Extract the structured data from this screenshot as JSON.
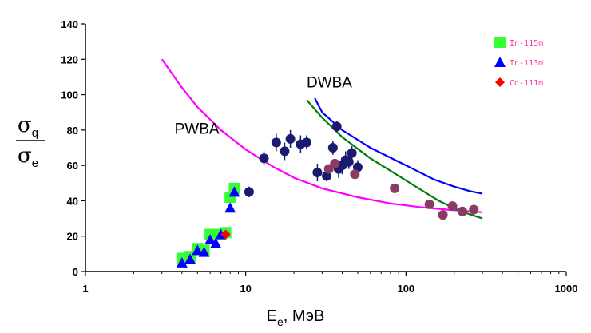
{
  "chart_data": {
    "type": "scatter",
    "title": "",
    "xlabel": "E",
    "xlabel_sub": "e",
    "xlabel_unit": ", МэВ",
    "ylabel_num": "σ",
    "ylabel_num_sub": "q",
    "ylabel_den": "σ",
    "ylabel_den_sub": "e",
    "xscale": "log",
    "xlim": [
      1,
      1000
    ],
    "ylim": [
      0,
      140
    ],
    "x_ticks": [
      {
        "value": 1,
        "label": "1"
      },
      {
        "value": 10,
        "label": "10"
      },
      {
        "value": 100,
        "label": "100"
      },
      {
        "value": 1000,
        "label": "1000"
      }
    ],
    "y_ticks": [
      {
        "value": 0,
        "label": "0"
      },
      {
        "value": 20,
        "label": "20"
      },
      {
        "value": 40,
        "label": "40"
      },
      {
        "value": 60,
        "label": "60"
      },
      {
        "value": 80,
        "label": "80"
      },
      {
        "value": 100,
        "label": "100"
      },
      {
        "value": 120,
        "label": "120"
      },
      {
        "value": 140,
        "label": "140"
      }
    ],
    "legend_position": "top-right",
    "legend": [
      {
        "name": "In-115m",
        "marker": "square",
        "color": "#33ff33"
      },
      {
        "name": "In-113m",
        "marker": "triangle",
        "color": "#0000ff"
      },
      {
        "name": "Cd-111m",
        "marker": "diamond",
        "color": "#ff0000"
      }
    ],
    "annotations": [
      {
        "text": "PWBA",
        "x": 3.6,
        "y": 78
      },
      {
        "text": "DWBA",
        "x": 24,
        "y": 104
      }
    ],
    "series": [
      {
        "name": "In-115m",
        "marker": "square",
        "color": "#33ff33",
        "points": [
          [
            4.0,
            7.5
          ],
          [
            4.5,
            8.5
          ],
          [
            5.0,
            13
          ],
          [
            5.5,
            12
          ],
          [
            6.0,
            21
          ],
          [
            7.0,
            21
          ],
          [
            7.5,
            22
          ],
          [
            8.0,
            42
          ],
          [
            8.5,
            47
          ]
        ]
      },
      {
        "name": "In-113m",
        "marker": "triangle",
        "color": "#0000ff",
        "points": [
          [
            4.0,
            5
          ],
          [
            4.5,
            7
          ],
          [
            5.0,
            12
          ],
          [
            5.5,
            11
          ],
          [
            6.0,
            18
          ],
          [
            6.5,
            16
          ],
          [
            7.0,
            21
          ],
          [
            8.0,
            36
          ],
          [
            8.5,
            45
          ]
        ]
      },
      {
        "name": "Cd-111m",
        "marker": "diamond",
        "color": "#ff0000",
        "points": [
          [
            7.5,
            21
          ]
        ]
      },
      {
        "marker": "circle",
        "color": "#1a1a6e",
        "errorbars": true,
        "points": [
          [
            10.5,
            45,
            3
          ],
          [
            13,
            64,
            4
          ],
          [
            15.5,
            73,
            5
          ],
          [
            17.5,
            68,
            5
          ],
          [
            19,
            75,
            5
          ],
          [
            22,
            72,
            5
          ],
          [
            24,
            73,
            4
          ],
          [
            28,
            56,
            5
          ],
          [
            32,
            54,
            3
          ],
          [
            35,
            70,
            4
          ],
          [
            37,
            82,
            3
          ],
          [
            38,
            58,
            5
          ],
          [
            40,
            60,
            5
          ],
          [
            42,
            63,
            5
          ],
          [
            44,
            62,
            4
          ],
          [
            46,
            67,
            4
          ],
          [
            50,
            59,
            4
          ]
        ]
      },
      {
        "marker": "circle",
        "color": "#8b3a62",
        "points": [
          [
            33,
            58
          ],
          [
            36,
            61
          ],
          [
            48,
            55
          ],
          [
            85,
            47
          ],
          [
            140,
            38
          ],
          [
            170,
            32
          ],
          [
            195,
            37
          ],
          [
            225,
            34
          ],
          [
            265,
            35
          ]
        ]
      }
    ],
    "curves": [
      {
        "label": "PWBA",
        "color": "#ff00ff",
        "points": [
          [
            3,
            120
          ],
          [
            4,
            104
          ],
          [
            5,
            93
          ],
          [
            7,
            80
          ],
          [
            10,
            69
          ],
          [
            15,
            59
          ],
          [
            20,
            53
          ],
          [
            30,
            47
          ],
          [
            50,
            42
          ],
          [
            80,
            38.5
          ],
          [
            120,
            36.5
          ],
          [
            180,
            35
          ],
          [
            250,
            34
          ],
          [
            300,
            33.5
          ]
        ]
      },
      {
        "label": "DWBA",
        "color": "#0000ff",
        "points": [
          [
            27,
            98
          ],
          [
            30,
            90
          ],
          [
            40,
            80
          ],
          [
            60,
            70
          ],
          [
            100,
            60
          ],
          [
            150,
            52
          ],
          [
            200,
            48
          ],
          [
            250,
            45.5
          ],
          [
            300,
            44
          ]
        ]
      },
      {
        "label": "DWBA",
        "color": "#008000",
        "points": [
          [
            24,
            97
          ],
          [
            30,
            87
          ],
          [
            40,
            76
          ],
          [
            60,
            64
          ],
          [
            80,
            57
          ],
          [
            120,
            47
          ],
          [
            160,
            40
          ],
          [
            220,
            34
          ],
          [
            300,
            30
          ]
        ]
      }
    ]
  }
}
